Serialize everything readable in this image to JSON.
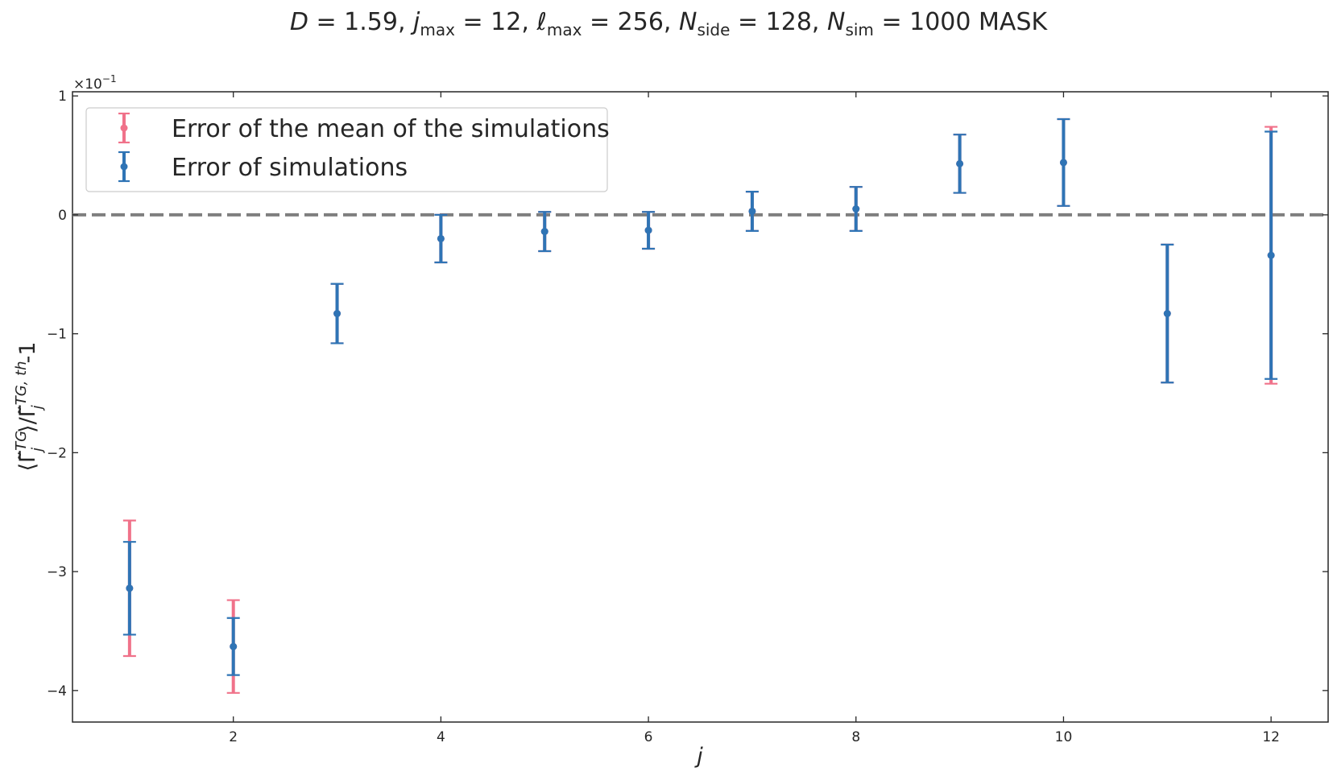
{
  "chart_data": {
    "type": "scatter",
    "title": "D = 1.59,  j_max = 12,  ℓ_max = 256,  N_side = 128, N_sim = 1000 MASK",
    "title_parts": {
      "D_label": "D",
      "D_value": "1.59",
      "jmax_label": "j",
      "jmax_sub": "max",
      "jmax_value": "12",
      "lmax_label": "ℓ",
      "lmax_sub": "max",
      "lmax_value": "256",
      "nside_label": "N",
      "nside_sub": "side",
      "nside_value": "128",
      "nsim_label": "N",
      "nsim_sub": "sim",
      "nsim_value": "1000",
      "suffix": "MASK"
    },
    "xlabel": "j",
    "ylabel": "⟨Γ̃ⱼ^TG⟩/Γ̃ⱼ^TG,th -1",
    "ylabel_parts": {
      "open": "⟨",
      "gamma": "Γ̃",
      "sub_j": "j",
      "sup1": "TG",
      "mid": "⟩/",
      "sup2": "TG, th",
      "tail": "-1"
    },
    "offset_text": "×10",
    "offset_exponent": "−1",
    "xlim": [
      0.45,
      12.55
    ],
    "ylim": [
      -0.4265,
      0.1035
    ],
    "x_ticks": [
      2,
      4,
      6,
      8,
      10,
      12
    ],
    "y_ticks": [
      -0.4,
      -0.3,
      -0.2,
      -0.1,
      0.0,
      0.1
    ],
    "y_tick_labels": [
      "−4",
      "−3",
      "−2",
      "−1",
      "0",
      "1"
    ],
    "reference_line": {
      "y": 0,
      "style": "dashed",
      "color": "#7f7f7f"
    },
    "grid": false,
    "legend_position": "top-left",
    "series": [
      {
        "name": "Error of the mean of the simulations",
        "color": "#f0728a",
        "x": [
          1,
          2,
          3,
          4,
          5,
          6,
          7,
          8,
          9,
          10,
          11,
          12
        ],
        "y": [
          -0.314,
          -0.363,
          -0.083,
          -0.02,
          -0.014,
          -0.013,
          0.003,
          0.005,
          0.043,
          0.044,
          -0.083,
          -0.034
        ],
        "err": [
          0.057,
          0.039,
          0.025,
          0.02,
          0.0165,
          0.0155,
          0.0165,
          0.0185,
          0.0245,
          0.0365,
          0.058,
          0.108
        ]
      },
      {
        "name": "Error of simulations",
        "color": "#2f74b5",
        "x": [
          1,
          2,
          3,
          4,
          5,
          6,
          7,
          8,
          9,
          10,
          11,
          12
        ],
        "y": [
          -0.314,
          -0.363,
          -0.083,
          -0.02,
          -0.014,
          -0.013,
          0.003,
          0.005,
          0.043,
          0.044,
          -0.083,
          -0.034
        ],
        "err": [
          0.039,
          0.024,
          0.025,
          0.02,
          0.0165,
          0.0155,
          0.0165,
          0.0185,
          0.0245,
          0.0365,
          0.058,
          0.104
        ]
      }
    ]
  }
}
